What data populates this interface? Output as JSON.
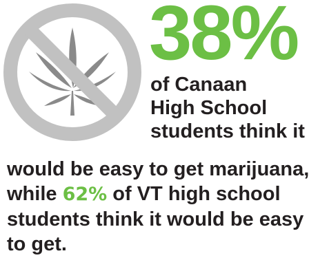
{
  "colors": {
    "accent": "#6cbf45",
    "text": "#231f20",
    "sign_gray": "#c1c1c1",
    "leaf_gray": "#8a8a8a"
  },
  "icon": {
    "name": "no-marijuana-icon"
  },
  "stat": {
    "value": "38%",
    "lines": [
      "of Canaan",
      "High School",
      "students think it"
    ],
    "cont_line1": "would be easy to get marijuana,",
    "line2_before": "while ",
    "line2_accent": "62%",
    "line2_after": " of VT high school",
    "line3": "students think it would be easy",
    "line4": "to get."
  }
}
